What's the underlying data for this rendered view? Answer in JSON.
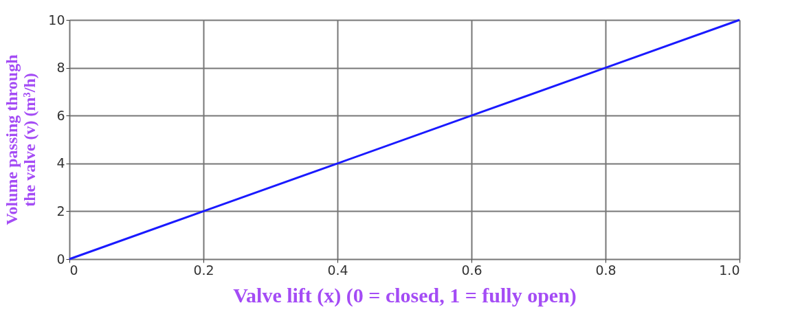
{
  "chart_data": {
    "type": "line",
    "xlabel": "Valve lift (x)  (0 = closed, 1 = fully open)",
    "ylabel": "Volume passing through\nthe valve (v)  (m³/h)",
    "x": [
      0,
      0.2,
      0.4,
      0.6,
      0.8,
      1.0
    ],
    "series": [
      {
        "color": "#1a1aff",
        "values": [
          0,
          2,
          4,
          6,
          8,
          10
        ]
      }
    ],
    "xlim": [
      0,
      1
    ],
    "xticks": [
      0,
      0.2,
      0.4,
      0.6,
      0.8,
      {
        "value": 1,
        "label": "1.0"
      }
    ],
    "ylim": [
      0,
      10
    ],
    "yticks": [
      0,
      2,
      4,
      6,
      8,
      10
    ],
    "grid": true,
    "marker": "none",
    "line_style": "solid"
  }
}
